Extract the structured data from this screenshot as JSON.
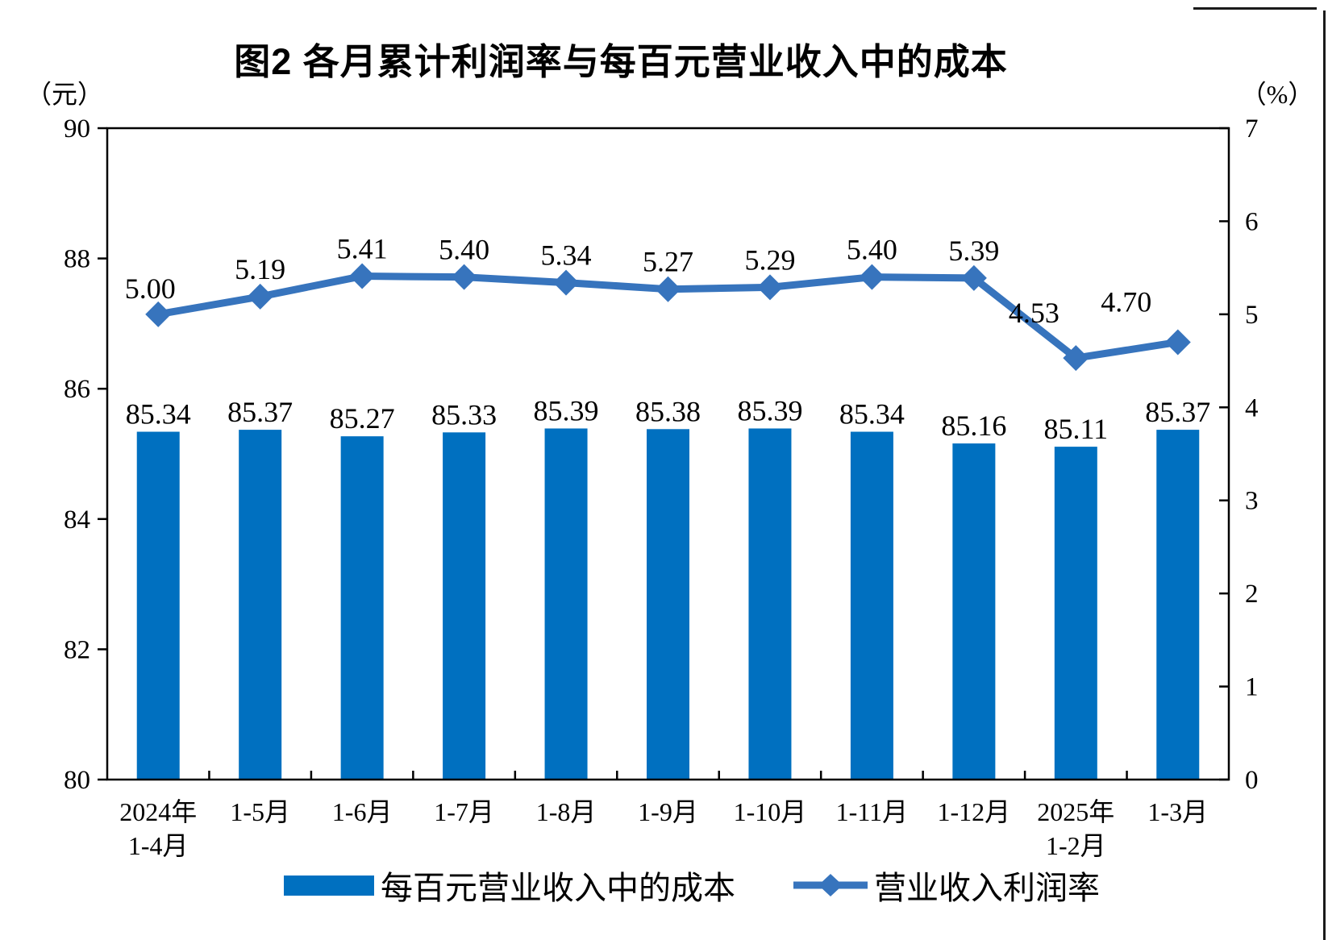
{
  "title": "图2 各月累计利润率与每百元营业收入中的成本",
  "left_axis": {
    "unit": "（元）",
    "min": 80,
    "max": 90,
    "ticks": [
      90,
      88,
      86,
      84,
      82,
      80
    ]
  },
  "right_axis": {
    "unit": "（%）",
    "min": 0,
    "max": 7,
    "ticks": [
      7,
      6,
      5,
      4,
      3,
      2,
      1,
      0
    ]
  },
  "legend": {
    "items": [
      {
        "label": "每百元营业收入中的成本",
        "marker": "bar"
      },
      {
        "label": "营业收入利润率",
        "marker": "line-diamond"
      }
    ]
  },
  "colors": {
    "bar": "#0070C0",
    "line": "#3774BD",
    "axis": "#000000",
    "text": "#000000"
  },
  "chart_data": {
    "type": "bar+line combo",
    "categories": [
      "2024年\n1-4月",
      "1-5月",
      "1-6月",
      "1-7月",
      "1-8月",
      "1-9月",
      "1-10月",
      "1-11月",
      "1-12月",
      "2025年\n1-2月",
      "1-3月"
    ],
    "series": [
      {
        "name": "每百元营业收入中的成本",
        "type": "bar",
        "axis": "left",
        "unit": "元",
        "values": [
          85.34,
          85.37,
          85.27,
          85.33,
          85.39,
          85.38,
          85.39,
          85.34,
          85.16,
          85.11,
          85.37
        ]
      },
      {
        "name": "营业收入利润率",
        "type": "line",
        "axis": "right",
        "unit": "%",
        "values": [
          5.0,
          5.19,
          5.41,
          5.4,
          5.34,
          5.27,
          5.29,
          5.4,
          5.39,
          4.53,
          4.7
        ]
      }
    ],
    "title": "图2 各月累计利润率与每百元营业收入中的成本",
    "left_ylim": [
      80,
      90
    ],
    "right_ylim": [
      0,
      7
    ],
    "grid": false,
    "legend_position": "bottom",
    "value_labels_decimals": 2
  }
}
